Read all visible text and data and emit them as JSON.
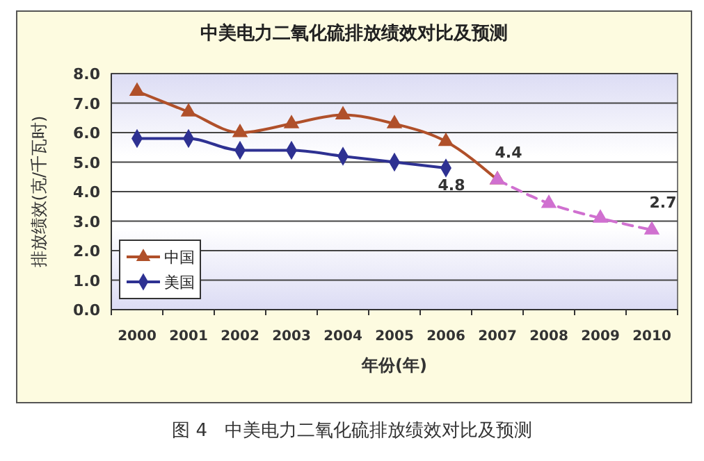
{
  "chart_data": {
    "type": "line",
    "title": "中美电力二氧化硫排放绩效对比及预测",
    "xlabel": "年份(年)",
    "ylabel": "排放绩效(克/千瓦时)",
    "categories": [
      "2000",
      "2001",
      "2002",
      "2003",
      "2004",
      "2005",
      "2006",
      "2007",
      "2008",
      "2009",
      "2010"
    ],
    "ylim": [
      0,
      8
    ],
    "yticks": [
      {
        "value": 0,
        "label": "0.0"
      },
      {
        "value": 1,
        "label": "1.0"
      },
      {
        "value": 2,
        "label": "2.0"
      },
      {
        "value": 3,
        "label": "3.0"
      },
      {
        "value": 4,
        "label": "4.0"
      },
      {
        "value": 5,
        "label": "5.0"
      },
      {
        "value": 6,
        "label": "6.0"
      },
      {
        "value": 7,
        "label": "7.0"
      },
      {
        "value": 8,
        "label": "8.0"
      }
    ],
    "grid": "y",
    "legend": "bottom left",
    "series": [
      {
        "name": "中国",
        "color": "#b0502a",
        "marker": "triangle",
        "line_style": "solid",
        "values": [
          7.4,
          6.7,
          6.0,
          6.3,
          6.6,
          6.3,
          5.7,
          4.4,
          null,
          null,
          null
        ],
        "value_labels": [
          null,
          null,
          null,
          null,
          null,
          null,
          null,
          "4.4",
          null,
          null,
          null
        ]
      },
      {
        "name": "美国",
        "color": "#2e3192",
        "marker": "diamond",
        "line_style": "solid",
        "values": [
          5.8,
          5.8,
          5.4,
          5.4,
          5.2,
          5.0,
          4.8,
          null,
          null,
          null,
          null
        ],
        "value_labels": [
          null,
          null,
          null,
          null,
          null,
          null,
          "4.8",
          null,
          null,
          null,
          null
        ]
      },
      {
        "color": "#d070d0",
        "marker": "triangle",
        "line_style": "dashed",
        "values": [
          null,
          null,
          null,
          null,
          null,
          null,
          null,
          4.4,
          3.6,
          3.1,
          2.7
        ],
        "value_labels": [
          null,
          null,
          null,
          null,
          null,
          null,
          null,
          null,
          null,
          null,
          "2.7"
        ]
      }
    ],
    "annotations": [
      "图 4   中美电力二氧化硫排放绩效对比及预测"
    ]
  }
}
